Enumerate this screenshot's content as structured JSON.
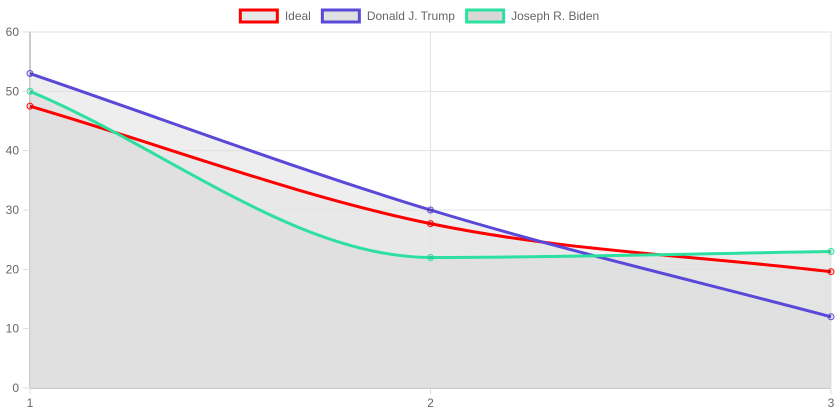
{
  "chart_data": {
    "type": "area",
    "x": [
      1,
      2,
      3
    ],
    "series": [
      {
        "name": "Ideal",
        "values": [
          47.5,
          27.7,
          19.6
        ],
        "color": "#ff0000",
        "fill": "#e8e8e8",
        "fill_opacity": 0.55
      },
      {
        "name": "Donald J. Trump",
        "values": [
          53,
          30,
          12
        ],
        "color": "#5a48d8",
        "fill": "#e0e0e0",
        "fill_opacity": 0.55
      },
      {
        "name": "Joseph R. Biden",
        "values": [
          50,
          22,
          23
        ],
        "color": "#2ee0a0",
        "fill": "#d8d8d8",
        "fill_opacity": 0.55
      }
    ],
    "ylim": [
      0,
      60
    ],
    "yticks": [
      0,
      10,
      20,
      30,
      40,
      50,
      60
    ],
    "xticks": [
      1,
      2,
      3
    ],
    "grid": true,
    "legend_position": "top-center",
    "smooth": true
  }
}
